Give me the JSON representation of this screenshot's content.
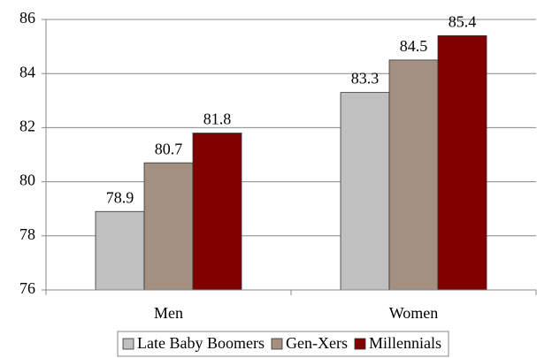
{
  "chart_data": {
    "type": "bar",
    "categories": [
      "Men",
      "Women"
    ],
    "series": [
      {
        "name": "Late Baby Boomers",
        "color": "#c0c0c0",
        "values": [
          78.9,
          83.3
        ]
      },
      {
        "name": "Gen-Xers",
        "color": "#a39080",
        "values": [
          80.7,
          84.5
        ]
      },
      {
        "name": "Millennials",
        "color": "#800000",
        "values": [
          81.8,
          85.4
        ]
      }
    ],
    "ylim": [
      76,
      86
    ],
    "yticks": [
      76,
      78,
      80,
      82,
      84,
      86
    ],
    "grid": true,
    "legend": "bottom"
  }
}
